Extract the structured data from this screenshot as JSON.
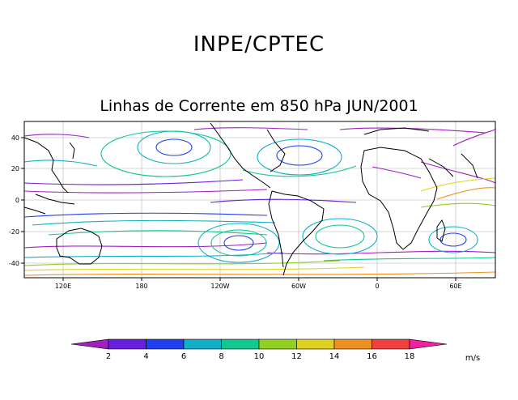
{
  "header": {
    "title": "INPE/CPTEC",
    "subtitle": "Linhas de Corrente em 850 hPa JUN/2001"
  },
  "axes": {
    "x_ticks": [
      "120E",
      "180",
      "120W",
      "60W",
      "0",
      "60E"
    ],
    "y_ticks": [
      "40",
      "20",
      "0",
      "-20",
      "-40"
    ]
  },
  "colorbar": {
    "unit": "m/s",
    "ticks": [
      "2",
      "4",
      "6",
      "8",
      "10",
      "12",
      "14",
      "16",
      "18"
    ],
    "colors": [
      "#a020c0",
      "#6a1ee0",
      "#2040f0",
      "#10b0c8",
      "#10c890",
      "#90d020",
      "#e0d020",
      "#f09020",
      "#f04040",
      "#f020a0"
    ]
  }
}
